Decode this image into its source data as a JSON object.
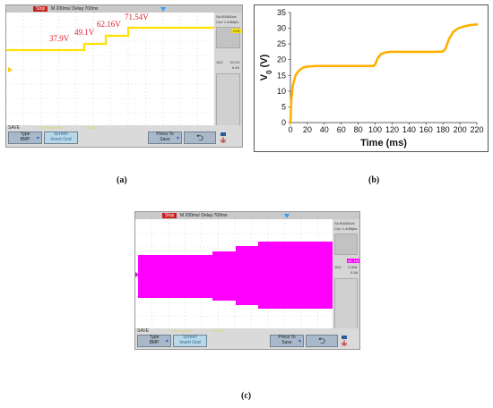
{
  "panel_a": {
    "status": "Stop",
    "timebase": "M 200ms/  Delay:700ms",
    "side_top": [
      "Sa 500kSa/s",
      "Curr 1.40Mpts"
    ],
    "ch_label": "CH1",
    "ch_scale": "20.0V",
    "ch_offset": "6.4V",
    "ch_num": "1DC",
    "save": "SAVE",
    "bottom_note_1": "Pri.lXenadorme",
    "bottom_note_2": "PMO5fs",
    "btn_type_1": "Type",
    "btn_type_2": "BMP",
    "btn_screen_1": "Screen",
    "btn_screen_2": "Invert Gnd",
    "btn_press_1": "Press To",
    "btn_press_2": "Save",
    "btn_back": "⮌",
    "caption": "(a)",
    "voltage_labels": [
      "37.9V",
      "49.1V",
      "62.16V",
      "71.54V"
    ]
  },
  "panel_c": {
    "status": "Stop",
    "timebase": "M 200ms/  Delay:700ms",
    "side_top": [
      "Sa 500kSa/s",
      "Curr 1.40Mpts"
    ],
    "ch_label": "AC 1M",
    "ch_scale": "2.00A",
    "ch_offset": "0.5A",
    "ch_num": "1DC",
    "save": "SAVE",
    "bottom_note_1": "Pri.lXenadorme",
    "bottom_note_2": "PMO5fs",
    "btn_type_1": "Type",
    "btn_type_2": "BMP",
    "btn_screen_1": "Screen",
    "btn_screen_2": "Invert Gnd",
    "btn_press_1": "Press To",
    "btn_press_2": "Save",
    "btn_back": "⮌",
    "caption": "(c)"
  },
  "colors": {
    "yellow_trace": "#ffe100",
    "magenta_trace": "#ff00ff",
    "orange_line": "#ffb000",
    "label_red": "#e0202a"
  },
  "chart_data": [
    {
      "type": "line",
      "title": "",
      "series": [
        {
          "x": [
            0,
            1,
            3,
            6,
            10,
            15,
            20,
            30,
            40,
            60,
            80,
            98,
            100,
            103,
            107,
            112,
            118,
            130,
            150,
            170,
            180,
            183,
            187,
            192,
            198,
            205,
            212,
            220
          ],
          "y": [
            0,
            7,
            12,
            15,
            16.5,
            17.5,
            17.8,
            18,
            18,
            18,
            18,
            18,
            18.5,
            20.5,
            21.8,
            22.3,
            22.5,
            22.5,
            22.5,
            22.5,
            22.6,
            23.5,
            26.5,
            28.8,
            30,
            30.6,
            31,
            31.2
          ]
        }
      ],
      "xlabel": "Time (ms)",
      "ylabel": "V",
      "ylabel_sub": "0",
      "ylabel_unit": " (V)",
      "xlim": [
        0,
        220
      ],
      "ylim": [
        0,
        35
      ],
      "xticks": [
        0,
        20,
        40,
        60,
        80,
        100,
        120,
        140,
        160,
        180,
        200,
        220
      ],
      "yticks": [
        0,
        5,
        10,
        15,
        20,
        25,
        30,
        35
      ],
      "grid": false,
      "caption": "(b)"
    }
  ]
}
